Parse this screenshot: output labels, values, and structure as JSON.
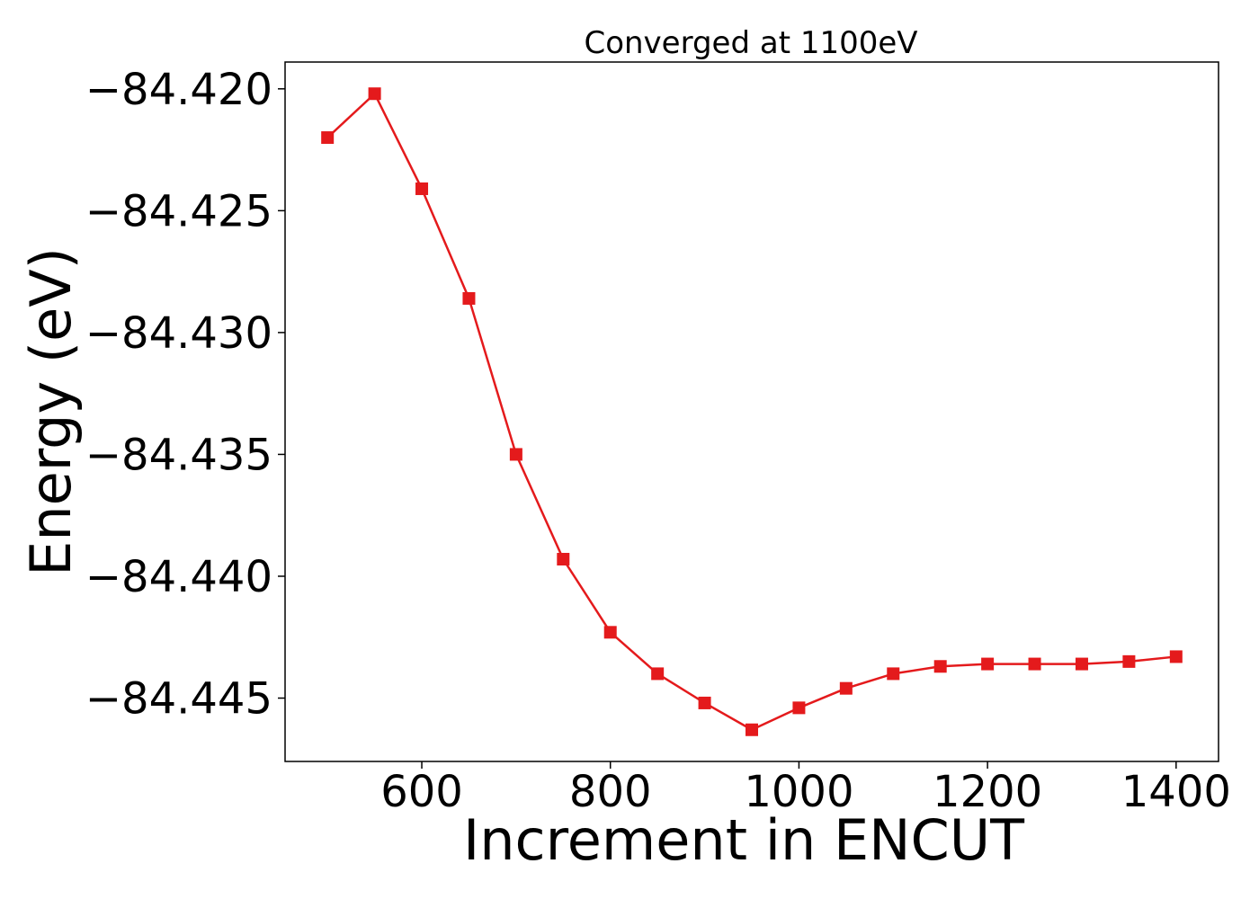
{
  "chart_data": {
    "type": "line",
    "title": "Converged at 1100eV",
    "xlabel": "Increment in ENCUT",
    "ylabel": "Energy (eV)",
    "xlim": [
      455,
      1445
    ],
    "ylim": [
      -84.4476,
      -84.4189
    ],
    "x_ticks": [
      {
        "value": 600,
        "label": "600"
      },
      {
        "value": 800,
        "label": "800"
      },
      {
        "value": 1000,
        "label": "1000"
      },
      {
        "value": 1200,
        "label": "1200"
      },
      {
        "value": 1400,
        "label": "1400"
      }
    ],
    "y_ticks": [
      {
        "value": -84.42,
        "label": "−84.420"
      },
      {
        "value": -84.425,
        "label": "−84.425"
      },
      {
        "value": -84.43,
        "label": "−84.430"
      },
      {
        "value": -84.435,
        "label": "−84.435"
      },
      {
        "value": -84.44,
        "label": "−84.440"
      },
      {
        "value": -84.445,
        "label": "−84.445"
      }
    ],
    "grid": false,
    "legend": "none",
    "series": [
      {
        "color": "#e41a1c",
        "marker": "square",
        "x": [
          500,
          550,
          600,
          650,
          700,
          750,
          800,
          850,
          900,
          950,
          1000,
          1050,
          1100,
          1150,
          1200,
          1250,
          1300,
          1350,
          1400
        ],
        "y": [
          -84.422,
          -84.4202,
          -84.4241,
          -84.4286,
          -84.435,
          -84.4393,
          -84.4423,
          -84.444,
          -84.4452,
          -84.4463,
          -84.4454,
          -84.4446,
          -84.444,
          -84.4437,
          -84.4436,
          -84.4436,
          -84.4436,
          -84.4435,
          -84.4433
        ]
      }
    ]
  }
}
